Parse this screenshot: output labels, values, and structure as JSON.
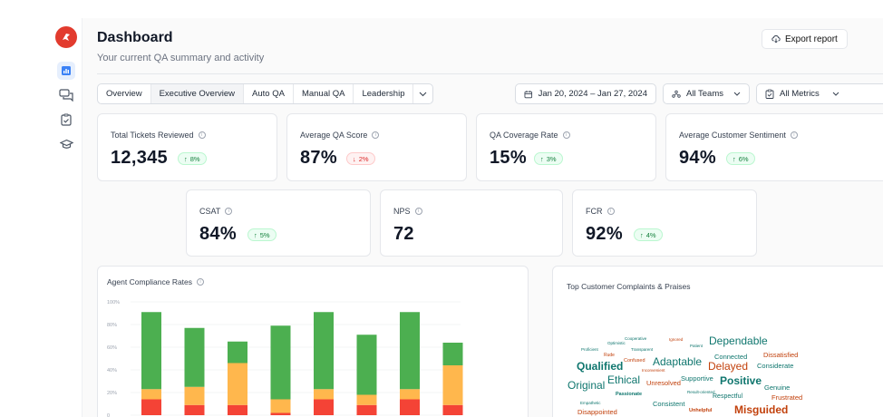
{
  "colors": {
    "accent": "#2563eb",
    "logo": "#e23b2e",
    "green": "#4caf50",
    "amber": "#ffb74d",
    "red": "#f44336"
  },
  "sidebar": {
    "items": [
      {
        "icon": "bar-chart-icon",
        "active": true
      },
      {
        "icon": "chat-bubbles-icon",
        "active": false
      },
      {
        "icon": "clipboard-check-icon",
        "active": false
      },
      {
        "icon": "graduation-cap-icon",
        "active": false
      }
    ]
  },
  "header": {
    "title": "Dashboard",
    "subtitle": "Your current QA summary and activity",
    "export_label": "Export report"
  },
  "tabs": [
    {
      "label": "Overview",
      "active": false
    },
    {
      "label": "Executive Overview",
      "active": true
    },
    {
      "label": "Auto QA",
      "active": false
    },
    {
      "label": "Manual QA",
      "active": false
    },
    {
      "label": "Leadership",
      "active": false
    }
  ],
  "filters": {
    "date_range": "Jan 20, 2024 – Jan 27, 2024",
    "teams": "All Teams",
    "metrics": "All Metrics"
  },
  "kpis_row1": [
    {
      "label": "Total Tickets Reviewed",
      "value": "12,345",
      "delta": "8%",
      "direction": "up"
    },
    {
      "label": "Average QA Score",
      "value": "87%",
      "delta": "2%",
      "direction": "down"
    },
    {
      "label": "QA Coverage Rate",
      "value": "15%",
      "delta": "3%",
      "direction": "up"
    },
    {
      "label": "Average Customer Sentiment",
      "value": "94%",
      "delta": "6%",
      "direction": "up"
    }
  ],
  "kpis_row2": [
    {
      "label": "CSAT",
      "value": "84%",
      "delta": "5%",
      "direction": "up"
    },
    {
      "label": "NPS",
      "value": "72",
      "delta": "",
      "direction": ""
    },
    {
      "label": "FCR",
      "value": "92%",
      "delta": "4%",
      "direction": "up"
    }
  ],
  "compliance": {
    "title": "Agent Compliance Rates"
  },
  "chart_data": {
    "type": "bar",
    "stacked": true,
    "title": "Agent Compliance Rates",
    "y_ticks": [
      "100%",
      "80%",
      "60%",
      "40%",
      "20%",
      "0"
    ],
    "ylim": [
      0,
      100
    ],
    "visible_ylim": [
      0,
      100
    ],
    "series": [
      {
        "color": "#f44336",
        "values": [
          14,
          9,
          9,
          2,
          14,
          9,
          14,
          9
        ]
      },
      {
        "color": "#ffb74d",
        "values": [
          9,
          16,
          37,
          12,
          9,
          9,
          9,
          35
        ]
      },
      {
        "color": "#4caf50",
        "values": [
          68,
          52,
          19,
          65,
          68,
          53,
          68,
          20
        ]
      }
    ]
  },
  "wordcloud": {
    "title": "Top Customer Complaints & Praises",
    "words": [
      {
        "text": "Cooperative",
        "color": "#0f766e",
        "size": 4.5,
        "weight": 400
      },
      {
        "text": "Ignored",
        "color": "#c2410c",
        "size": 4.5,
        "weight": 400
      },
      {
        "text": "Optimistic",
        "color": "#0f766e",
        "size": 4.5,
        "weight": 400
      },
      {
        "text": "Patient",
        "color": "#0f766e",
        "size": 4.5,
        "weight": 400
      },
      {
        "text": "Dependable",
        "color": "#0f766e",
        "size": 12,
        "weight": 400
      },
      {
        "text": "Proficient",
        "color": "#0f766e",
        "size": 4.5,
        "weight": 400
      },
      {
        "text": "Transparent",
        "color": "#0f766e",
        "size": 4.5,
        "weight": 400
      },
      {
        "text": "Rude",
        "color": "#c2410c",
        "size": 5,
        "weight": 400
      },
      {
        "text": "Connected",
        "color": "#0f766e",
        "size": 7.5,
        "weight": 400
      },
      {
        "text": "Dissatisfied",
        "color": "#c2410c",
        "size": 7.5,
        "weight": 400
      },
      {
        "text": "Confused",
        "color": "#c2410c",
        "size": 5.5,
        "weight": 400
      },
      {
        "text": "Adaptable",
        "color": "#0f766e",
        "size": 12,
        "weight": 400
      },
      {
        "text": "Qualified",
        "color": "#0f766e",
        "size": 12,
        "weight": 700
      },
      {
        "text": "Delayed",
        "color": "#c2410c",
        "size": 12,
        "weight": 400
      },
      {
        "text": "Considerate",
        "color": "#0f766e",
        "size": 7.5,
        "weight": 400
      },
      {
        "text": "Inconvenient",
        "color": "#c2410c",
        "size": 4.5,
        "weight": 400
      },
      {
        "text": "Ethical",
        "color": "#0f766e",
        "size": 12,
        "weight": 400
      },
      {
        "text": "Supportive",
        "color": "#0f766e",
        "size": 7.5,
        "weight": 400
      },
      {
        "text": "Unresolved",
        "color": "#c2410c",
        "size": 7.5,
        "weight": 400
      },
      {
        "text": "Positive",
        "color": "#0f766e",
        "size": 12,
        "weight": 700
      },
      {
        "text": "Genuine",
        "color": "#0f766e",
        "size": 7.5,
        "weight": 400
      },
      {
        "text": "Original",
        "color": "#0f766e",
        "size": 12,
        "weight": 400
      },
      {
        "text": "Passionate",
        "color": "#0f766e",
        "size": 5.5,
        "weight": 700
      },
      {
        "text": "Result-oriented",
        "color": "#0f766e",
        "size": 4.5,
        "weight": 400
      },
      {
        "text": "Respectful",
        "color": "#0f766e",
        "size": 7,
        "weight": 400
      },
      {
        "text": "Frustrated",
        "color": "#c2410c",
        "size": 7.5,
        "weight": 400
      },
      {
        "text": "Empathetic",
        "color": "#0f766e",
        "size": 4.5,
        "weight": 400
      },
      {
        "text": "Consistent",
        "color": "#0f766e",
        "size": 7.5,
        "weight": 400
      },
      {
        "text": "Disappointed",
        "color": "#c2410c",
        "size": 7.5,
        "weight": 400
      },
      {
        "text": "Unhelpful",
        "color": "#c2410c",
        "size": 5.5,
        "weight": 700
      },
      {
        "text": "Misguided",
        "color": "#c2410c",
        "size": 12,
        "weight": 700
      }
    ]
  }
}
